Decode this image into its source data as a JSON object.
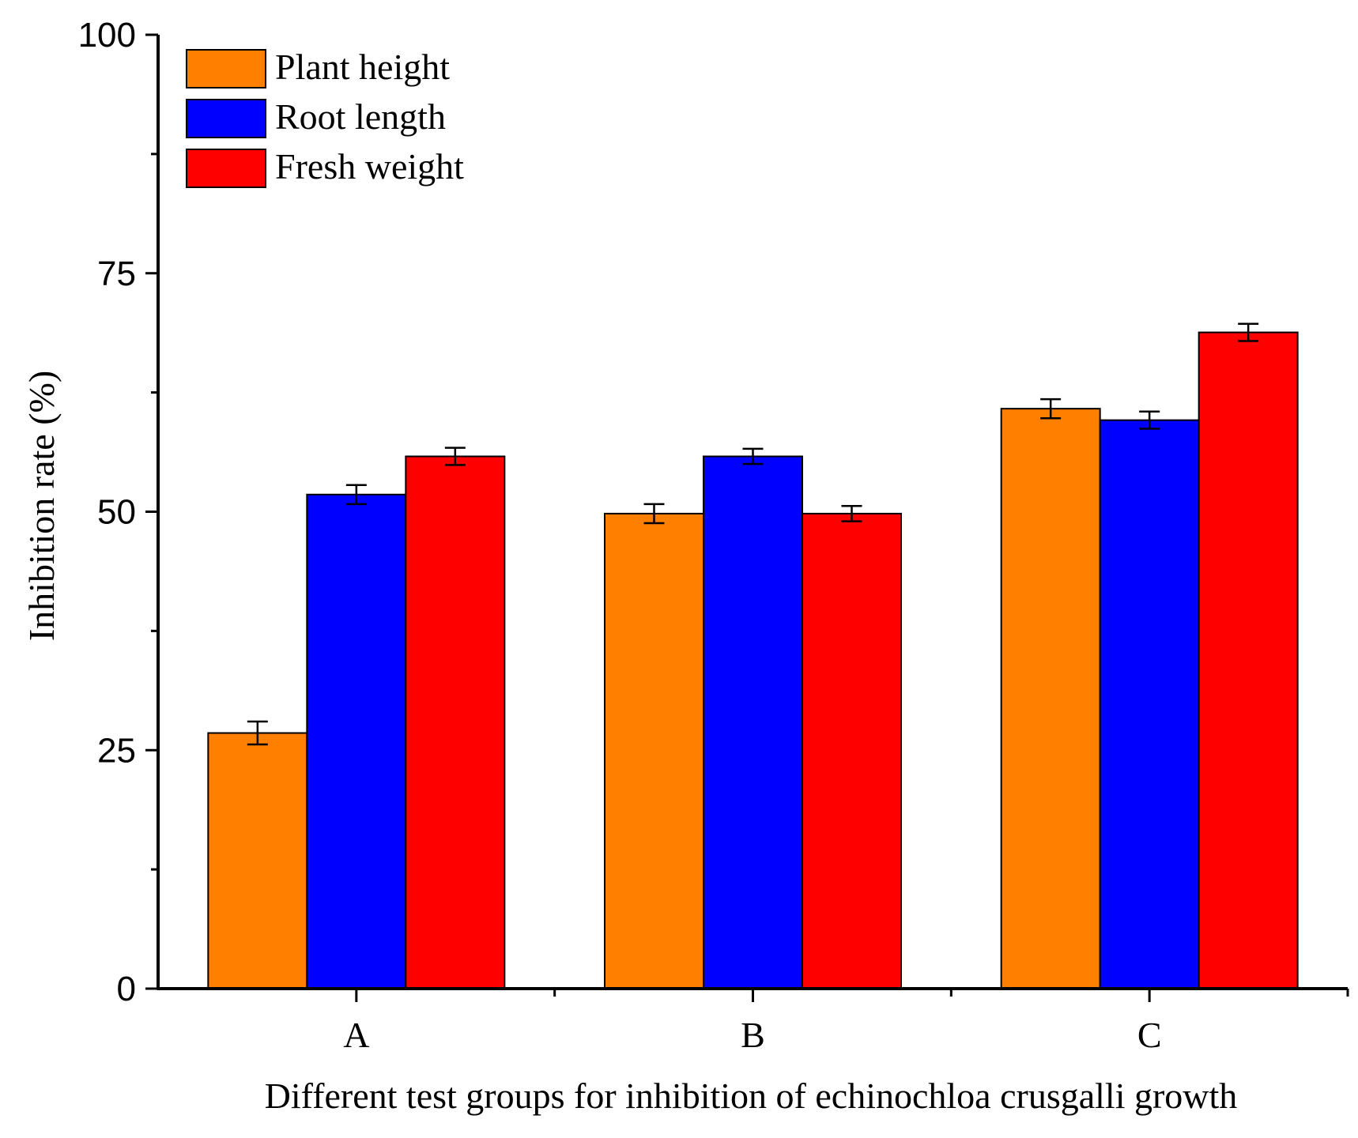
{
  "chart_data": {
    "type": "bar",
    "title": "",
    "xlabel": "Different test groups for inhibition of echinochloa crusgalli growth",
    "ylabel": "Inhibition rate (%)",
    "ylim": [
      0,
      100
    ],
    "yticks": [
      0,
      25,
      50,
      75,
      100
    ],
    "categories": [
      "A",
      "B",
      "C"
    ],
    "legend_position": "top-left",
    "series": [
      {
        "name": "Plant height",
        "color": "#ff7f00",
        "values": [
          26.8,
          49.8,
          60.8
        ],
        "errors": [
          1.2,
          1.0,
          1.0
        ]
      },
      {
        "name": "Root length",
        "color": "#0000ff",
        "values": [
          51.8,
          55.8,
          59.6
        ],
        "errors": [
          1.0,
          0.8,
          0.9
        ]
      },
      {
        "name": "Fresh weight",
        "color": "#ff0000",
        "values": [
          55.8,
          49.8,
          68.8
        ],
        "errors": [
          0.9,
          0.8,
          0.9
        ]
      }
    ]
  }
}
